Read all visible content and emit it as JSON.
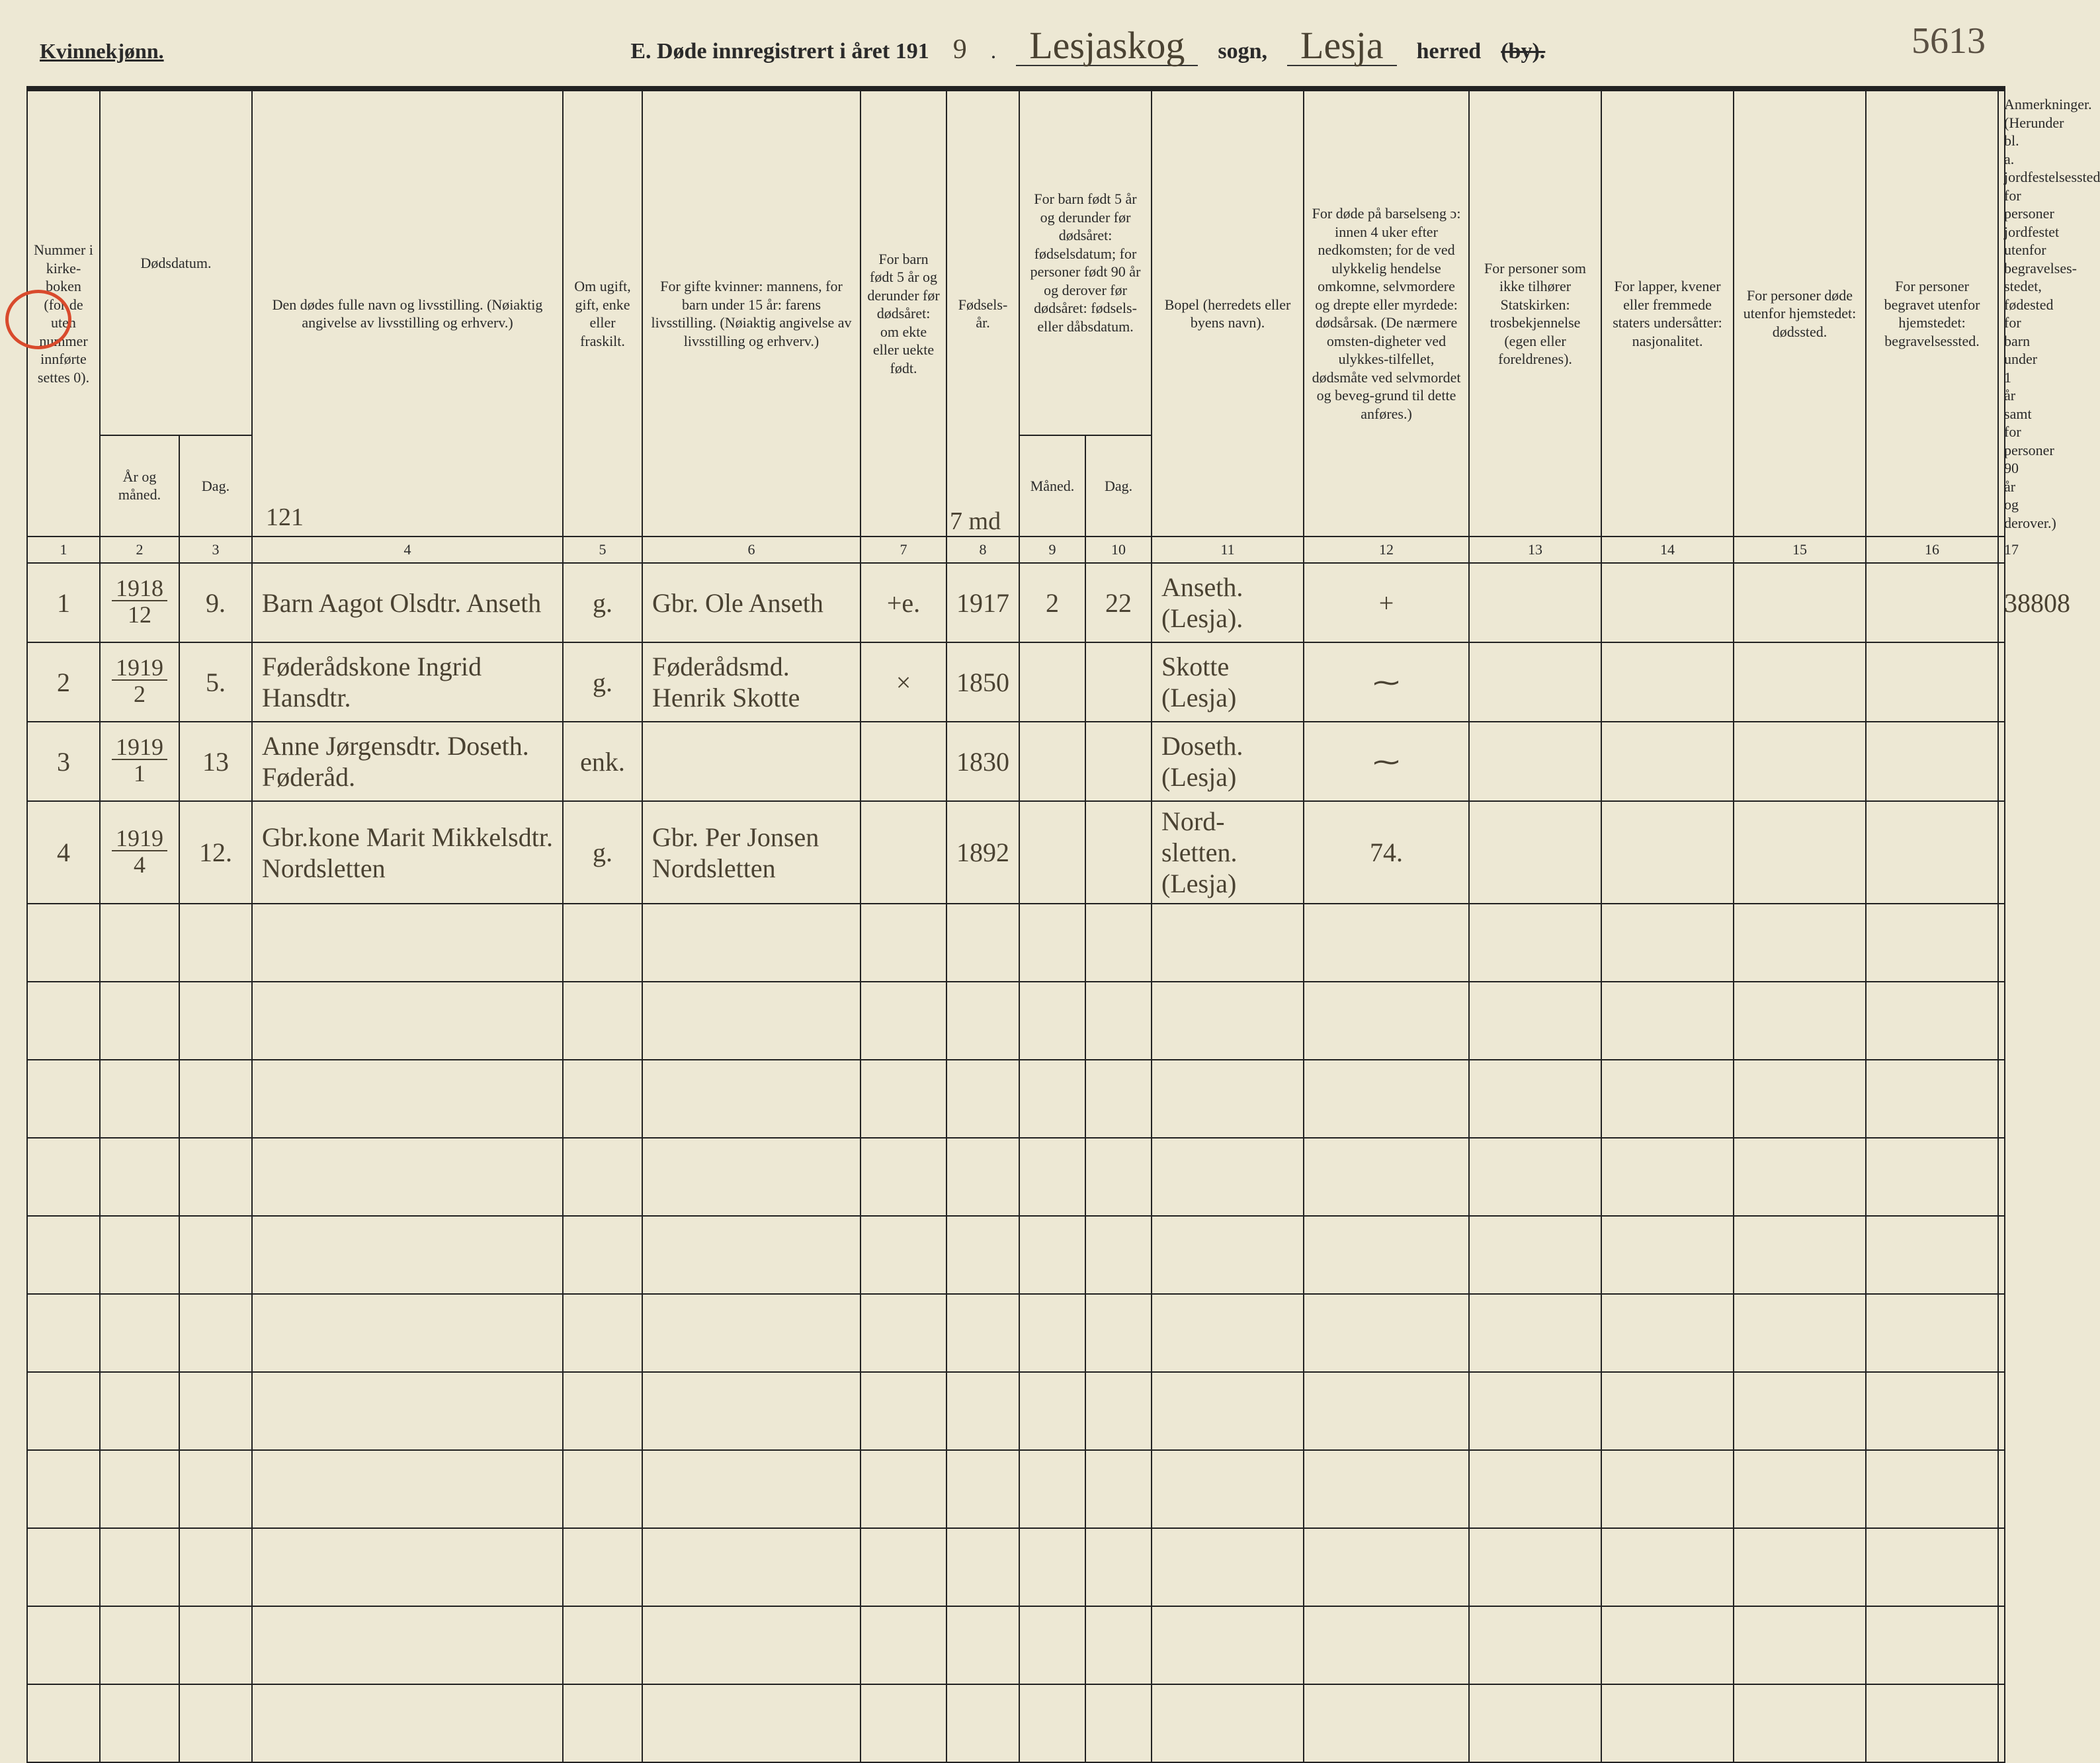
{
  "page_number_handwritten": "5613",
  "header": {
    "gender_label": "Kvinnekjønn.",
    "title_prefix": "E. Døde innregistrert i året 191",
    "year_suffix_hand": "9",
    "sogn_hand": "Lesjaskog",
    "sogn_label": "sogn,",
    "herred_hand": "Lesja",
    "herred_label": "herred",
    "by_struck": "(by)."
  },
  "columns": {
    "c1": "Nummer i kirke-boken (for de uten nummer innførte settes 0).",
    "c2_group": "Dødsdatum.",
    "c2": "År og måned.",
    "c3": "Dag.",
    "c4": "Den dødes fulle navn og livsstilling. (Nøiaktig angivelse av livsstilling og erhverv.)",
    "c4_hand_top": "121",
    "c5": "Om ugift, gift, enke eller fraskilt.",
    "c6": "For gifte kvinner: mannens, for barn under 15 år: farens livsstilling. (Nøiaktig angivelse av livsstilling og erhverv.)",
    "c7": "For barn født 5 år og derunder før dødsåret: om ekte eller uekte født.",
    "c8": "Fødsels-år.",
    "c9_group": "For barn født 5 år og derunder før dødsåret: fødselsdatum; for personer født 90 år og derover før dødsåret: fødsels- eller dåbsdatum.",
    "c9": "Måned.",
    "c10": "Dag.",
    "c11": "Bopel (herredets eller byens navn).",
    "c12": "For døde på barselseng ɔ: innen 4 uker efter nedkomsten; for de ved ulykkelig hendelse omkomne, selvmordere og drepte eller myrdede: dødsårsak. (De nærmere omsten-digheter ved ulykkes-tilfellet, dødsmåte ved selvmordet og beveg-grund til dette anføres.)",
    "c13": "For personer som ikke tilhører Statskirken: trosbekjennelse (egen eller foreldrenes).",
    "c14": "For lapper, kvener eller fremmede staters undersåtter: nasjonalitet.",
    "c15": "For personer døde utenfor hjemstedet: dødssted.",
    "c16": "For personer begravet utenfor hjemstedet: begravelsessted.",
    "c17": "Anmerkninger. (Herunder bl. a. jordfestelsessted for personer jordfestet utenfor begravelses-stedet, fødested for barn under 1 år samt for personer 90 år og derover.)"
  },
  "colnums": [
    "1",
    "2",
    "3",
    "4",
    "5",
    "6",
    "7",
    "8",
    "9",
    "10",
    "11",
    "12",
    "13",
    "14",
    "15",
    "16",
    "17"
  ],
  "col8_hand_overlay": "7 md",
  "rows": [
    {
      "num": "1",
      "year": "1918",
      "month": "12",
      "day": "9.",
      "name": "Barn Aagot Olsdtr. Anseth",
      "marital": "g.",
      "relation": "Gbr. Ole Anseth",
      "legit": "+e.",
      "birthyear": "1917",
      "bm": "2",
      "bd": "22",
      "residence": "Anseth. (Lesja).",
      "cause": "+",
      "c13": "",
      "c14": "",
      "c15": "",
      "c16": "",
      "notes": "38808"
    },
    {
      "num": "2",
      "year": "1919",
      "month": "2",
      "day": "5.",
      "name": "Føderådskone Ingrid Hansdtr.",
      "marital": "g.",
      "relation": "Føderådsmd. Henrik Skotte",
      "legit": "×",
      "birthyear": "1850",
      "bm": "",
      "bd": "",
      "residence": "Skotte (Lesja)",
      "cause": "⁓",
      "c13": "",
      "c14": "",
      "c15": "",
      "c16": "",
      "notes": ""
    },
    {
      "num": "3",
      "year": "1919",
      "month": "1",
      "day": "13",
      "name": "Anne Jørgensdtr. Doseth. Føderåd.",
      "marital": "enk.",
      "relation": "",
      "legit": "",
      "birthyear": "1830",
      "bm": "",
      "bd": "",
      "residence": "Doseth. (Lesja)",
      "cause": "⁓",
      "c13": "",
      "c14": "",
      "c15": "",
      "c16": "",
      "notes": ""
    },
    {
      "num": "4",
      "year": "1919",
      "month": "4",
      "day": "12.",
      "name": "Gbr.kone Marit Mikkelsdtr. Nordsletten",
      "marital": "g.",
      "relation": "Gbr. Per Jonsen Nordsletten",
      "legit": "",
      "birthyear": "1892",
      "bm": "",
      "bd": "",
      "residence": "Nord-sletten. (Lesja)",
      "cause": "74.",
      "c13": "",
      "c14": "",
      "c15": "",
      "c16": "",
      "notes": ""
    }
  ],
  "empty_row_count": 11,
  "colors": {
    "paper": "#ede8d4",
    "ink": "#2a2a2a",
    "hand_ink": "#4a4232",
    "red_mark": "#d94a2c"
  }
}
